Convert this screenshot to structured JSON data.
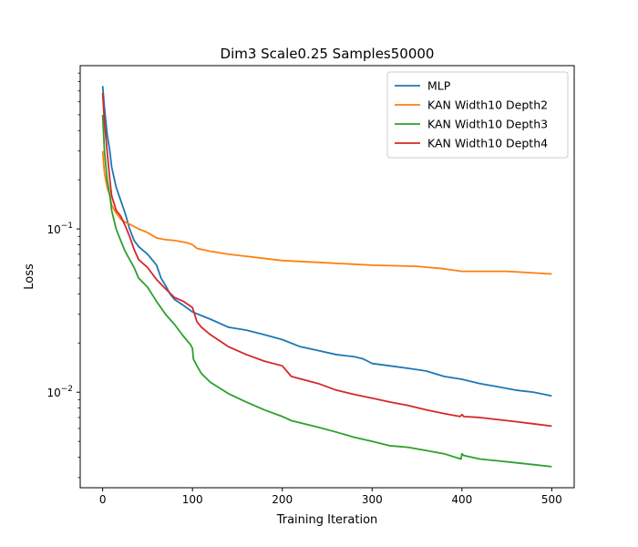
{
  "chart_data": {
    "type": "line",
    "title": "Dim3 Scale0.25 Samples50000",
    "xlabel": "Training Iteration",
    "ylabel": "Loss",
    "xscale": "linear",
    "yscale": "log",
    "xlim": [
      -25,
      525
    ],
    "ylim": [
      0.0026,
      1.0
    ],
    "grid": false,
    "legend_position": "top-right",
    "x_ticks": [
      {
        "value": 0,
        "label": "0"
      },
      {
        "value": 100,
        "label": "100"
      },
      {
        "value": 200,
        "label": "200"
      },
      {
        "value": 300,
        "label": "300"
      },
      {
        "value": 400,
        "label": "400"
      },
      {
        "value": 500,
        "label": "500"
      }
    ],
    "y_major_ticks": [
      {
        "value": 0.01,
        "base": "10",
        "exp": "−2"
      },
      {
        "value": 0.1,
        "base": "10",
        "exp": "−1"
      }
    ],
    "y_minor_ticks": [
      0.003,
      0.004,
      0.005,
      0.006,
      0.007,
      0.008,
      0.009,
      0.02,
      0.03,
      0.04,
      0.05,
      0.06,
      0.07,
      0.08,
      0.09,
      0.2,
      0.3,
      0.4,
      0.5,
      0.6,
      0.7,
      0.8,
      0.9
    ],
    "series": [
      {
        "name": "MLP",
        "color": "#1f77b4",
        "points": [
          [
            0,
            0.75
          ],
          [
            2,
            0.55
          ],
          [
            5,
            0.38
          ],
          [
            8,
            0.3
          ],
          [
            10,
            0.24
          ],
          [
            15,
            0.18
          ],
          [
            20,
            0.15
          ],
          [
            25,
            0.125
          ],
          [
            30,
            0.1
          ],
          [
            35,
            0.085
          ],
          [
            40,
            0.078
          ],
          [
            50,
            0.07
          ],
          [
            60,
            0.06
          ],
          [
            65,
            0.05
          ],
          [
            70,
            0.045
          ],
          [
            75,
            0.04
          ],
          [
            80,
            0.037
          ],
          [
            90,
            0.034
          ],
          [
            100,
            0.031
          ],
          [
            120,
            0.028
          ],
          [
            140,
            0.025
          ],
          [
            160,
            0.024
          ],
          [
            180,
            0.0225
          ],
          [
            200,
            0.021
          ],
          [
            220,
            0.019
          ],
          [
            240,
            0.018
          ],
          [
            260,
            0.017
          ],
          [
            280,
            0.0165
          ],
          [
            290,
            0.016
          ],
          [
            295,
            0.0155
          ],
          [
            300,
            0.015
          ],
          [
            320,
            0.0145
          ],
          [
            340,
            0.014
          ],
          [
            360,
            0.0135
          ],
          [
            380,
            0.0125
          ],
          [
            400,
            0.012
          ],
          [
            420,
            0.0113
          ],
          [
            440,
            0.0108
          ],
          [
            460,
            0.0103
          ],
          [
            480,
            0.01
          ],
          [
            500,
            0.0095
          ]
        ]
      },
      {
        "name": "KAN Width10 Depth2",
        "color": "#ff7f0e",
        "points": [
          [
            0,
            0.3
          ],
          [
            2,
            0.22
          ],
          [
            5,
            0.18
          ],
          [
            8,
            0.16
          ],
          [
            10,
            0.14
          ],
          [
            15,
            0.125
          ],
          [
            20,
            0.115
          ],
          [
            25,
            0.11
          ],
          [
            30,
            0.107
          ],
          [
            40,
            0.1
          ],
          [
            50,
            0.095
          ],
          [
            60,
            0.088
          ],
          [
            70,
            0.086
          ],
          [
            80,
            0.085
          ],
          [
            95,
            0.082
          ],
          [
            100,
            0.08
          ],
          [
            105,
            0.076
          ],
          [
            120,
            0.073
          ],
          [
            140,
            0.07
          ],
          [
            160,
            0.068
          ],
          [
            180,
            0.066
          ],
          [
            200,
            0.064
          ],
          [
            250,
            0.062
          ],
          [
            300,
            0.06
          ],
          [
            350,
            0.059
          ],
          [
            380,
            0.057
          ],
          [
            400,
            0.055
          ],
          [
            450,
            0.055
          ],
          [
            500,
            0.053
          ]
        ]
      },
      {
        "name": "KAN Width10 Depth3",
        "color": "#2ca02c",
        "points": [
          [
            0,
            0.5
          ],
          [
            2,
            0.3
          ],
          [
            5,
            0.2
          ],
          [
            8,
            0.16
          ],
          [
            10,
            0.13
          ],
          [
            15,
            0.1
          ],
          [
            20,
            0.085
          ],
          [
            25,
            0.073
          ],
          [
            30,
            0.065
          ],
          [
            35,
            0.058
          ],
          [
            40,
            0.05
          ],
          [
            50,
            0.044
          ],
          [
            60,
            0.036
          ],
          [
            70,
            0.03
          ],
          [
            80,
            0.026
          ],
          [
            90,
            0.022
          ],
          [
            98,
            0.0195
          ],
          [
            100,
            0.0185
          ],
          [
            101,
            0.016
          ],
          [
            105,
            0.0145
          ],
          [
            110,
            0.013
          ],
          [
            120,
            0.0115
          ],
          [
            140,
            0.0098
          ],
          [
            160,
            0.0087
          ],
          [
            180,
            0.0078
          ],
          [
            200,
            0.0071
          ],
          [
            210,
            0.0067
          ],
          [
            240,
            0.0061
          ],
          [
            260,
            0.0057
          ],
          [
            280,
            0.0053
          ],
          [
            300,
            0.005
          ],
          [
            320,
            0.0047
          ],
          [
            340,
            0.0046
          ],
          [
            360,
            0.0044
          ],
          [
            380,
            0.0042
          ],
          [
            399,
            0.0039
          ],
          [
            400,
            0.0042
          ],
          [
            402,
            0.0041
          ],
          [
            420,
            0.0039
          ],
          [
            440,
            0.0038
          ],
          [
            460,
            0.0037
          ],
          [
            480,
            0.0036
          ],
          [
            500,
            0.0035
          ]
        ]
      },
      {
        "name": "KAN Width10 Depth4",
        "color": "#d62728",
        "points": [
          [
            0,
            0.68
          ],
          [
            2,
            0.45
          ],
          [
            5,
            0.3
          ],
          [
            8,
            0.2
          ],
          [
            10,
            0.16
          ],
          [
            15,
            0.13
          ],
          [
            20,
            0.12
          ],
          [
            25,
            0.105
          ],
          [
            30,
            0.09
          ],
          [
            35,
            0.075
          ],
          [
            40,
            0.065
          ],
          [
            50,
            0.058
          ],
          [
            60,
            0.049
          ],
          [
            70,
            0.043
          ],
          [
            80,
            0.038
          ],
          [
            90,
            0.036
          ],
          [
            100,
            0.033
          ],
          [
            105,
            0.027
          ],
          [
            110,
            0.025
          ],
          [
            120,
            0.0225
          ],
          [
            140,
            0.019
          ],
          [
            160,
            0.017
          ],
          [
            180,
            0.0155
          ],
          [
            200,
            0.0145
          ],
          [
            210,
            0.0125
          ],
          [
            240,
            0.0113
          ],
          [
            260,
            0.0103
          ],
          [
            280,
            0.0097
          ],
          [
            300,
            0.0092
          ],
          [
            320,
            0.0087
          ],
          [
            340,
            0.0083
          ],
          [
            360,
            0.0078
          ],
          [
            380,
            0.0074
          ],
          [
            398,
            0.0071
          ],
          [
            400,
            0.0073
          ],
          [
            402,
            0.0071
          ],
          [
            420,
            0.007
          ],
          [
            440,
            0.0068
          ],
          [
            460,
            0.0066
          ],
          [
            480,
            0.0064
          ],
          [
            500,
            0.0062
          ]
        ]
      }
    ]
  }
}
